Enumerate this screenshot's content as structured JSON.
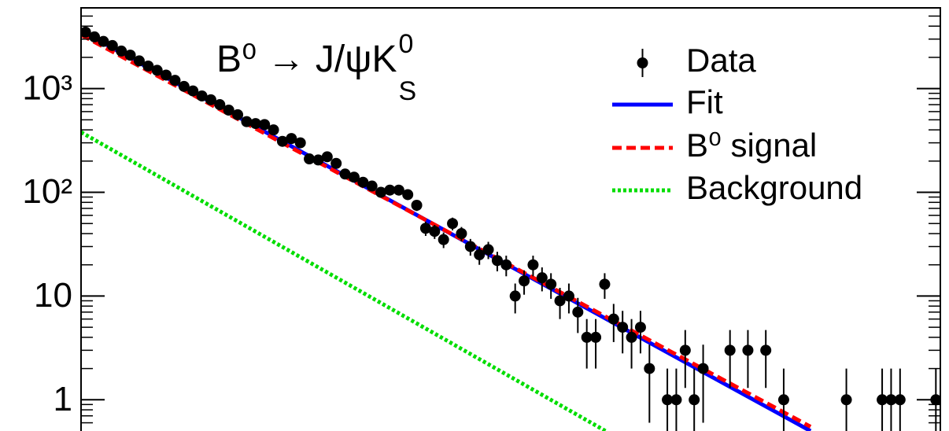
{
  "chart_data": {
    "type": "scatter",
    "title": "B⁰ → J/ψK",
    "title_sup": "0",
    "title_sub": "S",
    "log_y": true,
    "ylim": [
      0.5,
      6000
    ],
    "xlim": [
      0,
      96
    ],
    "yticks": [
      1,
      10,
      {
        "value": 100,
        "label": "10²"
      },
      {
        "value": 1000,
        "label": "10³"
      }
    ],
    "yminor_ticks": [
      0.6,
      0.7,
      0.8,
      0.9,
      2,
      3,
      4,
      5,
      6,
      7,
      8,
      9,
      20,
      30,
      40,
      50,
      60,
      70,
      80,
      90,
      200,
      300,
      400,
      500,
      600,
      700,
      800,
      900,
      2000,
      3000,
      4000,
      5000,
      6000
    ],
    "data": {
      "name": "Data",
      "color": "#000000",
      "x": [
        0.5,
        1.5,
        2.5,
        3.5,
        4.5,
        5.5,
        6.5,
        7.5,
        8.5,
        9.5,
        10.5,
        11.5,
        12.5,
        13.5,
        14.5,
        15.5,
        16.5,
        17.5,
        18.5,
        19.5,
        20.5,
        21.5,
        22.5,
        23.5,
        24.5,
        25.5,
        26.5,
        27.5,
        28.5,
        29.5,
        30.5,
        31.5,
        32.5,
        33.5,
        34.5,
        35.5,
        36.5,
        37.5,
        38.5,
        39.5,
        40.5,
        41.5,
        42.5,
        43.5,
        44.5,
        45.5,
        46.5,
        47.5,
        48.5,
        49.5,
        50.5,
        51.5,
        52.5,
        53.5,
        54.5,
        55.5,
        56.5,
        57.5,
        58.5,
        59.5,
        60.5,
        61.5,
        62.5,
        63.5,
        64.5,
        65.5,
        66.5,
        67.5,
        68.5,
        69.5,
        70.5,
        71.5,
        72.5,
        73.5,
        74.5,
        75.5,
        76.5,
        77.5,
        78.5,
        79.5,
        80.5,
        81.5,
        82.5,
        83.5,
        84.5,
        85.5,
        86.5,
        87.5,
        88.5,
        89.5,
        90.5,
        91.5,
        92.5,
        93.5,
        94.5,
        95.5
      ],
      "values": [
        3500,
        3150,
        2850,
        2600,
        2300,
        2100,
        1850,
        1650,
        1500,
        1350,
        1200,
        1050,
        950,
        850,
        780,
        700,
        620,
        560,
        480,
        460,
        450,
        400,
        310,
        330,
        300,
        210,
        205,
        220,
        190,
        150,
        140,
        125,
        115,
        100,
        105,
        105,
        95,
        75,
        45,
        42,
        35,
        50,
        40,
        30,
        25,
        28,
        22,
        20,
        10,
        14,
        20,
        15,
        13,
        9,
        10,
        7,
        4,
        4,
        13,
        6,
        5,
        4,
        5,
        2,
        null,
        1,
        1,
        3,
        1,
        2,
        null,
        null,
        3,
        null,
        3,
        null,
        3,
        null,
        1,
        null,
        null,
        null,
        null,
        null,
        null,
        1,
        null,
        null,
        null,
        1,
        1,
        1,
        null,
        null,
        null,
        1
      ],
      "errors": [
        59,
        56,
        53,
        51,
        48,
        46,
        43,
        41,
        39,
        37,
        35,
        32,
        31,
        29,
        28,
        26,
        25,
        24,
        22,
        21,
        21,
        20,
        18,
        18,
        17,
        14,
        14,
        15,
        14,
        12,
        12,
        11,
        11,
        10,
        10,
        10,
        10,
        9,
        7,
        6.5,
        6,
        7,
        6.3,
        5.5,
        5,
        5.3,
        4.7,
        4.5,
        3.2,
        3.7,
        4.5,
        3.9,
        3.6,
        3,
        3.2,
        2.6,
        2,
        2,
        3.6,
        2.4,
        2.2,
        2,
        2.2,
        1.4,
        null,
        1,
        1,
        1.7,
        1,
        1.4,
        null,
        null,
        1.7,
        null,
        1.7,
        null,
        1.7,
        null,
        1,
        null,
        null,
        null,
        null,
        null,
        null,
        1,
        null,
        null,
        null,
        1,
        1,
        1,
        null,
        null,
        null,
        1
      ]
    },
    "series": [
      {
        "name": "Fit",
        "color": "#0000ff",
        "style": "solid",
        "x": [
          0,
          81.5
        ],
        "values": [
          3600,
          0.5
        ]
      },
      {
        "name": "B⁰ signal",
        "color": "#ff0000",
        "style": "dashed",
        "x": [
          0,
          81.5
        ],
        "values": [
          3300,
          0.55
        ]
      },
      {
        "name": "Background",
        "color": "#00dd00",
        "style": "dotted",
        "x": [
          0,
          58.6
        ],
        "values": [
          380,
          0.5
        ]
      }
    ]
  }
}
